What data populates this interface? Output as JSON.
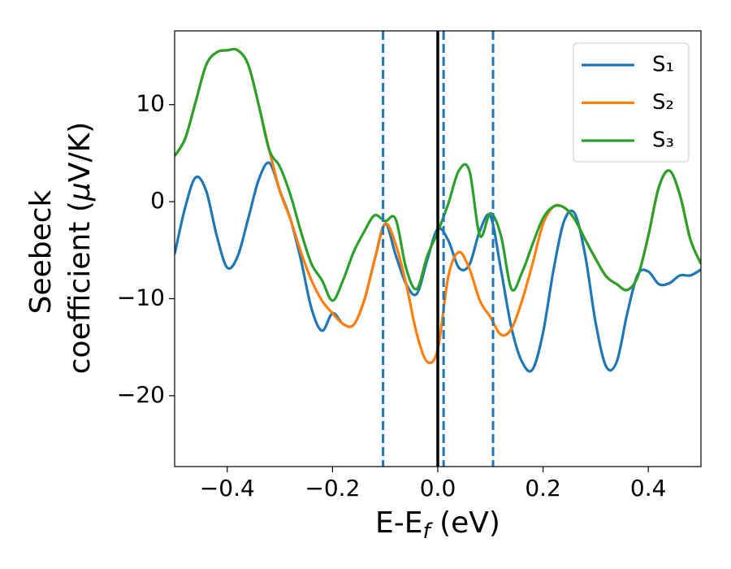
{
  "chart_data": {
    "type": "line",
    "xlabel": [
      "E-E",
      "f",
      " (eV)"
    ],
    "ylabel": [
      "Seebeck",
      "coefficient  (",
      "μ",
      "V/K)"
    ],
    "x": [
      -0.5,
      -0.48,
      -0.46,
      -0.44,
      -0.42,
      -0.4,
      -0.38,
      -0.36,
      -0.34,
      -0.32,
      -0.3,
      -0.28,
      -0.26,
      -0.24,
      -0.22,
      -0.2,
      -0.18,
      -0.16,
      -0.14,
      -0.12,
      -0.1,
      -0.08,
      -0.06,
      -0.04,
      -0.02,
      0,
      0.02,
      0.04,
      0.06,
      0.08,
      0.1,
      0.12,
      0.14,
      0.16,
      0.18,
      0.2,
      0.22,
      0.24,
      0.26,
      0.28,
      0.3,
      0.32,
      0.34,
      0.36,
      0.38,
      0.4,
      0.42,
      0.44,
      0.46,
      0.48,
      0.5
    ],
    "series": [
      {
        "name": "S₁",
        "color": "#1f77b4",
        "values": [
          -5.4,
          -0.6,
          2.5,
          1.1,
          -3.5,
          -6.8,
          -5.6,
          -1.7,
          2.3,
          4.0,
          1.1,
          -1.8,
          -6.0,
          -11.0,
          -13.3,
          -11.5,
          -12.6,
          -12.7,
          -10.2,
          -6.0,
          -2.3,
          -5.5,
          -8.5,
          -9.5,
          -6.0,
          -2.8,
          -4.0,
          -6.8,
          -6.5,
          -3.0,
          -1.5,
          -7.0,
          -13.0,
          -16.5,
          -17.3,
          -13.5,
          -7.0,
          -2.0,
          -1.2,
          -5.5,
          -12.5,
          -17.0,
          -16.5,
          -11.5,
          -7.5,
          -7.2,
          -8.5,
          -8.4,
          -7.6,
          -7.6,
          -7.0
        ]
      },
      {
        "name": "S₂",
        "color": "#ff7f0e",
        "values": [
          4.7,
          6.5,
          10.3,
          14.1,
          15.4,
          15.6,
          15.6,
          14.1,
          9.9,
          5.3,
          1.1,
          -1.8,
          -5.2,
          -8.1,
          -10.2,
          -11.5,
          -12.6,
          -12.7,
          -10.2,
          -6.0,
          -2.3,
          -4.4,
          -8.5,
          -13.6,
          -16.5,
          -15.2,
          -7.7,
          -5.2,
          -6.9,
          -10.2,
          -11.9,
          -13.7,
          -13.1,
          -10.2,
          -6.4,
          -2.3,
          -0.5,
          -0.6,
          -1.8,
          -3.9,
          -5.9,
          -7.7,
          -8.5,
          -9.1,
          -7.7,
          -3.5,
          1.5,
          3.2,
          0.7,
          -3.9,
          -6.4
        ]
      },
      {
        "name": "S₃",
        "color": "#2ca02c",
        "values": [
          4.7,
          6.5,
          10.3,
          14.1,
          15.4,
          15.6,
          15.6,
          14.1,
          9.9,
          5.3,
          3.6,
          0.7,
          -3.1,
          -6.4,
          -8.1,
          -10.2,
          -8.1,
          -5.2,
          -3.1,
          -1.4,
          -2.0,
          -1.8,
          -6.9,
          -9.0,
          -5.6,
          -3.1,
          -0.2,
          3.2,
          3.2,
          -3.5,
          -1.2,
          -3.5,
          -9.0,
          -7.3,
          -4.4,
          -1.7,
          -0.5,
          -0.6,
          -1.8,
          -3.9,
          -5.9,
          -7.7,
          -8.5,
          -9.1,
          -7.7,
          -3.5,
          1.5,
          3.2,
          0.7,
          -3.9,
          -6.4
        ]
      }
    ],
    "vlines": [
      {
        "x": 0,
        "color": "#000000",
        "style": "solid"
      },
      {
        "x": -0.104,
        "color": "#1f77b4",
        "style": "dashed"
      },
      {
        "x": 0.011,
        "color": "#1f77b4",
        "style": "dashed"
      },
      {
        "x": 0.105,
        "color": "#1f77b4",
        "style": "dashed"
      }
    ],
    "xlim": [
      -0.5,
      0.5
    ],
    "ylim": [
      -27.3,
      17.6
    ],
    "xticks": [
      {
        "value": -0.4,
        "label": "−0.4"
      },
      {
        "value": -0.2,
        "label": "−0.2"
      },
      {
        "value": 0,
        "label": "0.0"
      },
      0.2,
      0.4
    ],
    "yticks": [
      {
        "value": -20,
        "label": "−20"
      },
      {
        "value": -10,
        "label": "−10"
      },
      0,
      10
    ],
    "grid": false,
    "legend": "upper right"
  }
}
